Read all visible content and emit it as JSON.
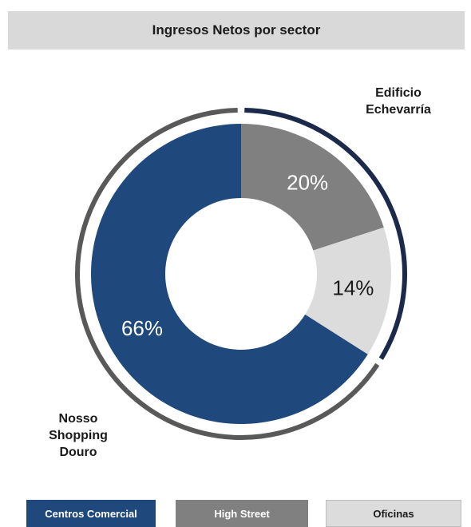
{
  "title": "Ingresos Netos por sector",
  "chart_data": {
    "type": "pie",
    "variant": "donut",
    "categories": [
      "High Street",
      "Oficinas",
      "Centros Comercial"
    ],
    "values": [
      20,
      14,
      66
    ],
    "labels": [
      "20%",
      "14%",
      "66%"
    ],
    "colors": [
      "#808080",
      "#dcdcdc",
      "#1f497d"
    ],
    "label_colors": [
      "#ffffff",
      "#1a1a1a",
      "#ffffff"
    ],
    "legend": [
      "Centros Comercial",
      "High Street",
      "Oficinas"
    ],
    "legend_placement": "bottom",
    "annotations": [
      {
        "lines": [
          "Edificio",
          "Echevarría"
        ],
        "arc_color": "#1b2a4a",
        "spans_categories": [
          "High Street",
          "Oficinas"
        ]
      },
      {
        "lines": [
          "Nosso",
          "Shopping",
          "Douro"
        ],
        "arc_color": "#595959",
        "spans_categories": [
          "Centros Comercial"
        ]
      }
    ]
  }
}
